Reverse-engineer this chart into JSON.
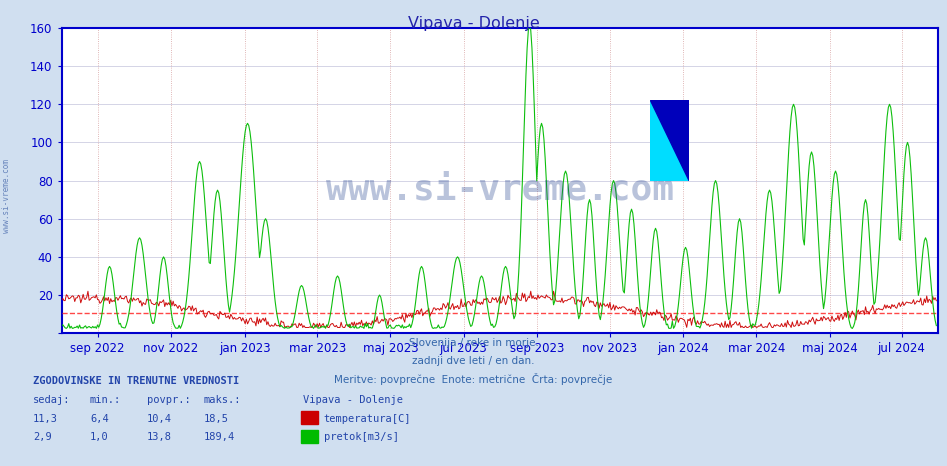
{
  "title": "Vipava - Dolenje",
  "bg_color": "#d0dff0",
  "plot_bg_color": "#ffffff",
  "title_color": "#2222aa",
  "axis_color": "#0000cc",
  "grid_color_h": "#aaaacc",
  "grid_color_v": "#cc9999",
  "red_dashed_color": "#ff3333",
  "temp_color": "#cc0000",
  "flow_color": "#00bb00",
  "watermark": "www.si-vreme.com",
  "watermark_color": "#1a3a8a",
  "watermark_alpha": 0.3,
  "temp_avg": 10.4,
  "ylim": [
    0,
    160
  ],
  "yticks": [
    0,
    20,
    40,
    60,
    80,
    100,
    120,
    140,
    160
  ],
  "x_tick_labels": [
    "sep 2022",
    "nov 2022",
    "jan 2023",
    "mar 2023",
    "maj 2023",
    "jul 2023",
    "sep 2023",
    "nov 2023",
    "jan 2024",
    "mar 2024",
    "maj 2024",
    "jul 2024"
  ],
  "x_tick_pos": [
    30,
    91,
    153,
    213,
    274,
    335,
    396,
    457,
    518,
    579,
    640,
    700
  ],
  "n_points": 730,
  "xlabel_lines": [
    "Slovenija / reke in morje.",
    "zadnji dve leti / en dan.",
    "Meritve: povprečne  Enote: metrične  Črta: povprečje"
  ],
  "table_header": "ZGODOVINSKE IN TRENUTNE VREDNOSTI",
  "table_cols": [
    "sedaj:",
    "min.:",
    "povpr.:",
    "maks.:"
  ],
  "temp_row": [
    "11,3",
    "6,4",
    "10,4",
    "18,5"
  ],
  "flow_row": [
    "2,9",
    "1,0",
    "13,8",
    "189,4"
  ],
  "legend_title": "Vipava - Dolenje",
  "legend_temp": "temperatura[C]",
  "legend_flow": "pretok[m3/s]",
  "sivreme_side": "www.si-vreme.com"
}
